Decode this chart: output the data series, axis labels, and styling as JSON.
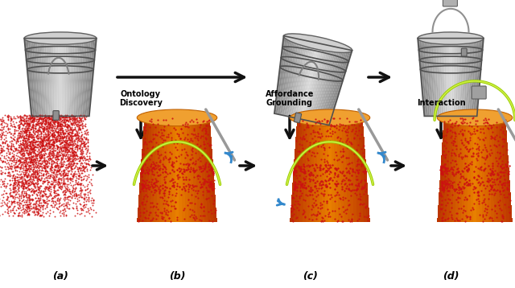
{
  "background_color": "#ffffff",
  "labels": {
    "a": "(a)",
    "b": "(b)",
    "c": "(c)",
    "d": "(d)"
  },
  "annotations": {
    "ontology": "Ontology\nDiscovery",
    "affordance": "Affordance\nGrounding",
    "interaction": "Interaction"
  },
  "colors": {
    "background": "#ffffff",
    "red_points": "#cc1111",
    "orange_main": "#e88000",
    "orange_light": "#f0a030",
    "orange_dark": "#c06000",
    "orange_side": "#d07010",
    "green_handle": "#aadd00",
    "yellow_handle": "#ddcc00",
    "blue_arrow": "#3388cc",
    "gray_main": "#b0b0b0",
    "gray_light": "#d8d8d8",
    "gray_dark": "#707070",
    "gray_side": "#909090",
    "gray_mid": "#c0c0c0",
    "arrow_color": "#111111",
    "text_color": "#000000",
    "gripper_color": "#a0a0a0"
  },
  "layout": {
    "fig_width": 6.4,
    "fig_height": 3.58,
    "dpi": 100
  }
}
